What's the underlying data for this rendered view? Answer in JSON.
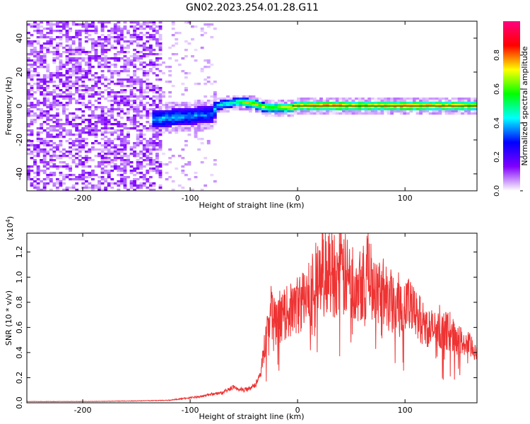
{
  "title": "GN02.2023.254.01.28.G11",
  "chart_data": [
    {
      "type": "heatmap",
      "xlabel": "Height of straight line (km)",
      "ylabel": "Frequency (Hz)",
      "xlim": [
        -252,
        167
      ],
      "ylim": [
        -50,
        50
      ],
      "xticks": [
        -200,
        -100,
        0,
        100
      ],
      "yticks": [
        -40,
        -20,
        0,
        20,
        40
      ],
      "grid": false,
      "colorbar": {
        "label": "Normalized spectral amplitude",
        "range": [
          0,
          1
        ],
        "ticks": [
          "0.0",
          "0.2",
          "0.4",
          "0.6",
          "0.8"
        ],
        "colors": [
          "#ffffff",
          "#8000ff",
          "#0000ff",
          "#00ffff",
          "#00ff00",
          "#ffff00",
          "#ff0000",
          "#ff0080"
        ]
      },
      "ridge": [
        {
          "x": -135,
          "freq": -8,
          "amp": 0.45
        },
        {
          "x": -120,
          "freq": -7,
          "amp": 0.45
        },
        {
          "x": -100,
          "freq": -6,
          "amp": 0.42
        },
        {
          "x": -80,
          "freq": -5,
          "amp": 0.4
        },
        {
          "x": -75,
          "freq": 0,
          "amp": 0.5
        },
        {
          "x": -60,
          "freq": 2,
          "amp": 0.55
        },
        {
          "x": -48,
          "freq": 2,
          "amp": 0.75
        },
        {
          "x": -40,
          "freq": 1,
          "amp": 0.8
        },
        {
          "x": -30,
          "freq": -1,
          "amp": 0.7
        },
        {
          "x": -20,
          "freq": -1,
          "amp": 0.75
        },
        {
          "x": -5,
          "freq": -1,
          "amp": 0.85
        },
        {
          "x": 0,
          "freq": 0,
          "amp": 0.9
        },
        {
          "x": 40,
          "freq": 0,
          "amp": 0.9
        },
        {
          "x": 60,
          "freq": 0,
          "amp": 0.85
        },
        {
          "x": 100,
          "freq": 0,
          "amp": 0.9
        },
        {
          "x": 167,
          "freq": 0,
          "amp": 0.85
        }
      ]
    },
    {
      "type": "line",
      "xlabel": "Height of straight line (km)",
      "ylabel": "SNR (10 * v/v)",
      "exponent_label": "(x10",
      "exponent_power": "4",
      "exponent_close": ")",
      "xlim": [
        -252,
        167
      ],
      "ylim": [
        0,
        1.35
      ],
      "xticks": [
        -200,
        -100,
        0,
        100
      ],
      "yticks": [
        "0.0",
        "0.2",
        "0.4",
        "0.6",
        "0.8",
        "1.0",
        "1.2"
      ],
      "grid": false,
      "series": [
        {
          "color": "#ee3333",
          "x": [
            -252,
            -200,
            -150,
            -120,
            -100,
            -90,
            -80,
            -70,
            -60,
            -50,
            -40,
            -35,
            -30,
            -25,
            -20,
            -15,
            -10,
            -5,
            0,
            10,
            15,
            20,
            25,
            30,
            35,
            40,
            45,
            50,
            55,
            60,
            65,
            70,
            75,
            80,
            85,
            90,
            95,
            100,
            105,
            110,
            115,
            120,
            130,
            140,
            150,
            160,
            167
          ],
          "y": [
            0.01,
            0.01,
            0.015,
            0.02,
            0.04,
            0.05,
            0.07,
            0.08,
            0.12,
            0.1,
            0.14,
            0.2,
            0.5,
            0.75,
            0.62,
            0.68,
            0.72,
            0.74,
            0.78,
            0.85,
            0.95,
            1.0,
            1.05,
            1.06,
            1.04,
            1.02,
            1.0,
            0.95,
            0.98,
            1.0,
            1.02,
            0.98,
            0.94,
            0.88,
            0.84,
            0.8,
            0.8,
            0.82,
            0.75,
            0.7,
            0.66,
            0.6,
            0.58,
            0.57,
            0.5,
            0.45,
            0.42
          ]
        }
      ]
    }
  ]
}
